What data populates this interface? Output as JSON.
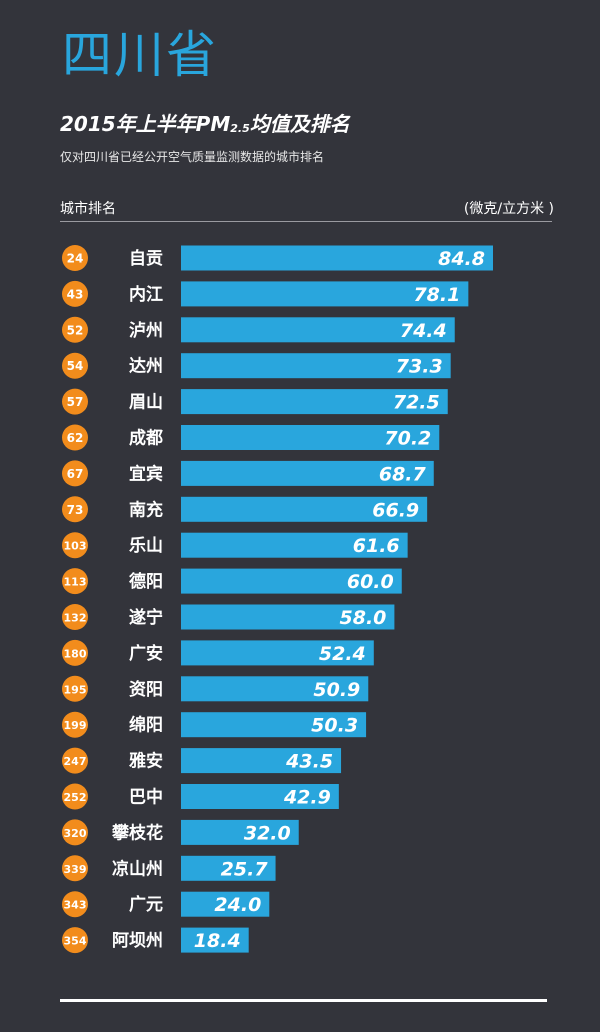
{
  "header": {
    "province": "四川省",
    "title_main": "2015年上半年PM",
    "title_sub": "2.5",
    "title_tail": "均值及排名",
    "subtitle": "仅对四川省已经公开空气质量监测数据的城市排名",
    "col_left": "城市排名",
    "col_right": "(微克/立方米 )"
  },
  "colors": {
    "background": "#33343b",
    "bar": "#29a6dd",
    "rank_badge": "#f28c1c",
    "text": "#ffffff"
  },
  "chart_data": {
    "type": "bar",
    "orientation": "horizontal",
    "title": "2015年上半年PM2.5均值及排名",
    "unit": "(微克/立方米 )",
    "categories": [
      "自贡",
      "内江",
      "泸州",
      "达州",
      "眉山",
      "成都",
      "宜宾",
      "南充",
      "乐山",
      "德阳",
      "遂宁",
      "广安",
      "资阳",
      "绵阳",
      "雅安",
      "巴中",
      "攀枝花",
      "凉山州",
      "广元",
      "阿坝州"
    ],
    "ranks": [
      24,
      43,
      52,
      54,
      57,
      62,
      67,
      73,
      103,
      113,
      132,
      180,
      195,
      199,
      247,
      252,
      320,
      339,
      343,
      354
    ],
    "values": [
      84.8,
      78.1,
      74.4,
      73.3,
      72.5,
      70.2,
      68.7,
      66.9,
      61.6,
      60.0,
      58.0,
      52.4,
      50.9,
      50.3,
      43.5,
      42.9,
      32.0,
      25.7,
      24.0,
      18.4
    ],
    "value_labels": [
      "84.8",
      "78.1",
      "74.4",
      "73.3",
      "72.5",
      "70.2",
      "68.7",
      "66.9",
      "61.6",
      "60.0",
      "58.0",
      "52.4",
      "50.9",
      "50.3",
      "43.5",
      "42.9",
      "32.0",
      "25.7",
      "24.0",
      "18.4"
    ]
  }
}
